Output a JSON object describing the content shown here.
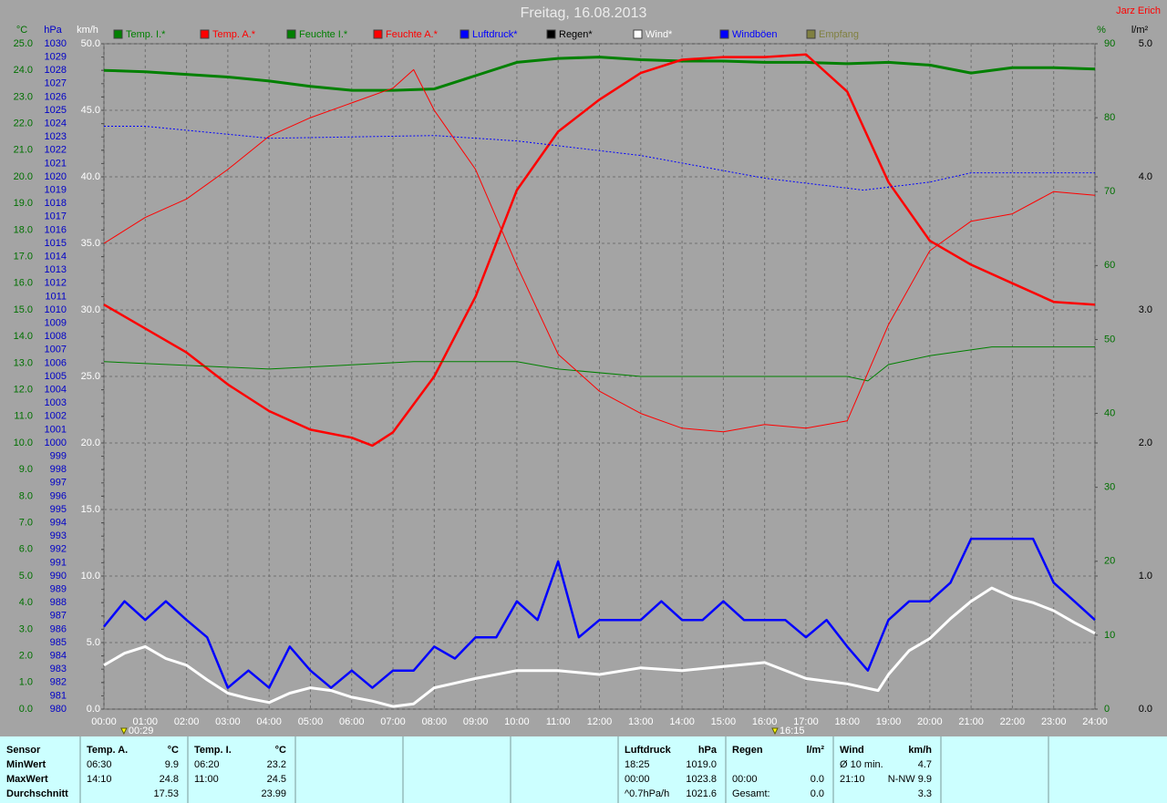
{
  "chart_data": {
    "type": "line",
    "title": "Freitag, 16.08.2013",
    "author": "Jarz Erich",
    "grid": true,
    "legend": "top",
    "xlim": [
      0,
      24
    ],
    "xticks": [
      {
        "value": 0,
        "label": "00:00"
      },
      {
        "value": 1,
        "label": "01:00"
      },
      {
        "value": 2,
        "label": "02:00"
      },
      {
        "value": 3,
        "label": "03:00"
      },
      {
        "value": 4,
        "label": "04:00"
      },
      {
        "value": 5,
        "label": "05:00"
      },
      {
        "value": 6,
        "label": "06:00"
      },
      {
        "value": 7,
        "label": "07:00"
      },
      {
        "value": 8,
        "label": "08:00"
      },
      {
        "value": 9,
        "label": "09:00"
      },
      {
        "value": 10,
        "label": "10:00"
      },
      {
        "value": 11,
        "label": "11:00"
      },
      {
        "value": 12,
        "label": "12:00"
      },
      {
        "value": 13,
        "label": "13:00"
      },
      {
        "value": 14,
        "label": "14:00"
      },
      {
        "value": 15,
        "label": "15:00"
      },
      {
        "value": 16,
        "label": "16:00"
      },
      {
        "value": 17,
        "label": "17:00"
      },
      {
        "value": 18,
        "label": "18:00"
      },
      {
        "value": 19,
        "label": "19:00"
      },
      {
        "value": 20,
        "label": "20:00"
      },
      {
        "value": 21,
        "label": "21:00"
      },
      {
        "value": 22,
        "label": "22:00"
      },
      {
        "value": 23,
        "label": "23:00"
      },
      {
        "value": 24,
        "label": "24:00"
      }
    ],
    "axes": [
      {
        "label": "°C",
        "color": "#007000",
        "lim": [
          0,
          25
        ],
        "ticks": [
          {
            "value": 0,
            "label": "0.0"
          },
          {
            "value": 1,
            "label": "1.0"
          },
          {
            "value": 2,
            "label": "2.0"
          },
          {
            "value": 3,
            "label": "3.0"
          },
          {
            "value": 4,
            "label": "4.0"
          },
          {
            "value": 5,
            "label": "5.0"
          },
          {
            "value": 6,
            "label": "6.0"
          },
          {
            "value": 7,
            "label": "7.0"
          },
          {
            "value": 8,
            "label": "8.0"
          },
          {
            "value": 9,
            "label": "9.0"
          },
          {
            "value": 10,
            "label": "10.0"
          },
          {
            "value": 11,
            "label": "11.0"
          },
          {
            "value": 12,
            "label": "12.0"
          },
          {
            "value": 13,
            "label": "13.0"
          },
          {
            "value": 14,
            "label": "14.0"
          },
          {
            "value": 15,
            "label": "15.0"
          },
          {
            "value": 16,
            "label": "16.0"
          },
          {
            "value": 17,
            "label": "17.0"
          },
          {
            "value": 18,
            "label": "18.0"
          },
          {
            "value": 19,
            "label": "19.0"
          },
          {
            "value": 20,
            "label": "20.0"
          },
          {
            "value": 21,
            "label": "21.0"
          },
          {
            "value": 22,
            "label": "22.0"
          },
          {
            "value": 23,
            "label": "23.0"
          },
          {
            "value": 24,
            "label": "24.0"
          },
          {
            "value": 25,
            "label": "25.0"
          }
        ]
      },
      {
        "label": "hPa",
        "color": "#0000c8",
        "lim": [
          980,
          1030
        ],
        "ticks": [
          980,
          981,
          982,
          983,
          984,
          985,
          986,
          987,
          988,
          989,
          990,
          991,
          992,
          993,
          994,
          995,
          996,
          997,
          998,
          999,
          1000,
          1001,
          1002,
          1003,
          1004,
          1005,
          1006,
          1007,
          1008,
          1009,
          1010,
          1011,
          1012,
          1013,
          1014,
          1015,
          1016,
          1017,
          1018,
          1019,
          1020,
          1021,
          1022,
          1023,
          1024,
          1025,
          1026,
          1027,
          1028,
          1029,
          1030
        ]
      },
      {
        "label": "km/h",
        "color": "#ffffff",
        "lim": [
          0,
          50
        ],
        "ticks": [
          {
            "value": 0,
            "label": "0.0"
          },
          {
            "value": 5,
            "label": "5.0"
          },
          {
            "value": 10,
            "label": "10.0"
          },
          {
            "value": 15,
            "label": "15.0"
          },
          {
            "value": 20,
            "label": "20.0"
          },
          {
            "value": 25,
            "label": "25.0"
          },
          {
            "value": 30,
            "label": "30.0"
          },
          {
            "value": 35,
            "label": "35.0"
          },
          {
            "value": 40,
            "label": "40.0"
          },
          {
            "value": 45,
            "label": "45.0"
          },
          {
            "value": 50,
            "label": "50.0"
          }
        ]
      },
      {
        "label": "%",
        "color": "#007000",
        "lim": [
          0,
          90
        ],
        "ticks": [
          0,
          10,
          20,
          30,
          40,
          50,
          60,
          70,
          80,
          90
        ]
      },
      {
        "label": "l/m²",
        "color": "#000000",
        "lim": [
          0,
          5
        ],
        "ticks": [
          {
            "value": 0,
            "label": "0.0"
          },
          {
            "value": 1,
            "label": "1.0"
          },
          {
            "value": 2,
            "label": "2.0"
          },
          {
            "value": 3,
            "label": "3.0"
          },
          {
            "value": 4,
            "label": "4.0"
          },
          {
            "value": 5,
            "label": "5.0"
          }
        ]
      }
    ],
    "series": [
      {
        "name": "Temp. I.*",
        "color": "#008000",
        "axis": 0,
        "x": [
          0,
          1,
          2,
          3,
          4,
          5,
          6,
          7,
          8,
          9,
          10,
          11,
          12,
          13,
          14,
          15,
          16,
          17,
          18,
          19,
          20,
          21,
          22,
          23,
          24
        ],
        "values": [
          24.0,
          23.95,
          23.85,
          23.75,
          23.6,
          23.4,
          23.25,
          23.25,
          23.3,
          23.8,
          24.3,
          24.45,
          24.5,
          24.4,
          24.35,
          24.35,
          24.3,
          24.3,
          24.25,
          24.3,
          24.2,
          23.9,
          24.1,
          24.1,
          24.05
        ]
      },
      {
        "name": "Temp. A.*",
        "color": "#ff0000",
        "axis": 0,
        "x": [
          0,
          1,
          2,
          3,
          4,
          5,
          6,
          6.5,
          7,
          8,
          9,
          10,
          11,
          12,
          13,
          14,
          15,
          16,
          17,
          18,
          19,
          20,
          21,
          22,
          23,
          24
        ],
        "values": [
          15.2,
          14.3,
          13.4,
          12.2,
          11.2,
          10.5,
          10.2,
          9.9,
          10.4,
          12.5,
          15.5,
          19.5,
          21.7,
          22.9,
          23.9,
          24.4,
          24.5,
          24.5,
          24.6,
          23.2,
          19.8,
          17.6,
          16.7,
          16.0,
          15.3,
          15.2
        ]
      },
      {
        "name": "Feuchte I.*",
        "color": "#008000",
        "axis": 3,
        "x": [
          0,
          4,
          7.5,
          10,
          11,
          13,
          18,
          18.5,
          19,
          20,
          21.5,
          24
        ],
        "values": [
          47,
          46,
          47,
          47,
          46,
          45,
          45,
          44.4,
          46.6,
          47.8,
          49,
          49
        ]
      },
      {
        "name": "Feuchte A.*",
        "color": "#ff0000",
        "axis": 3,
        "x": [
          0,
          1,
          2,
          3,
          4,
          5,
          6,
          7,
          7.5,
          8,
          9,
          10,
          11,
          12,
          13,
          14,
          15,
          16,
          17,
          18,
          19,
          20,
          21,
          22,
          23,
          24
        ],
        "values": [
          63,
          66.5,
          69,
          73,
          77.5,
          80,
          82,
          84,
          86.5,
          81,
          73,
          60,
          48,
          43,
          40,
          38,
          37.5,
          38.5,
          38,
          39,
          52,
          62,
          66,
          67,
          70,
          69.5
        ]
      },
      {
        "name": "Luftdruck*",
        "color": "#0000ff",
        "axis": 1,
        "x": [
          0,
          1,
          4,
          8,
          10,
          13,
          16,
          18.4,
          20,
          21,
          24
        ],
        "values": [
          1023.8,
          1023.8,
          1022.9,
          1023.1,
          1022.7,
          1021.6,
          1019.9,
          1019.0,
          1019.6,
          1020.3,
          1020.3
        ]
      },
      {
        "name": "Regen*",
        "color": "#000000",
        "axis": 4
      },
      {
        "name": "Wind*",
        "color": "#ffffff",
        "axis": 2,
        "x": [
          0,
          0.5,
          1,
          1.5,
          2,
          2.5,
          3,
          3.5,
          4,
          4.5,
          5,
          5.5,
          6,
          6.5,
          7,
          7.5,
          8,
          9,
          10,
          11,
          12,
          13,
          14,
          15,
          16,
          17,
          18,
          18.75,
          19,
          19.5,
          20,
          20.5,
          21,
          21.5,
          22,
          22.5,
          23,
          23.5,
          24
        ],
        "values": [
          3.3,
          4.2,
          4.7,
          3.8,
          3.3,
          2.2,
          1.2,
          0.8,
          0.5,
          1.2,
          1.6,
          1.4,
          0.9,
          0.6,
          0.2,
          0.4,
          1.6,
          2.3,
          2.9,
          2.9,
          2.6,
          3.1,
          2.9,
          3.2,
          3.5,
          2.3,
          1.9,
          1.4,
          2.6,
          4.4,
          5.3,
          6.8,
          8.1,
          9.1,
          8.4,
          8.0,
          7.4,
          6.5,
          5.7
        ]
      },
      {
        "name": "Windböen",
        "color": "#0000ff",
        "axis": 2,
        "x": [
          0,
          0.5,
          1,
          1.5,
          2,
          2.5,
          3,
          3.5,
          4,
          4.5,
          5,
          5.5,
          6,
          6.5,
          7,
          7.5,
          8,
          8.5,
          9,
          9.5,
          10,
          10.5,
          11,
          11.5,
          12,
          12.5,
          13,
          13.5,
          14,
          14.5,
          15,
          15.5,
          16,
          16.5,
          17,
          17.5,
          18,
          18.5,
          19,
          19.5,
          20,
          20.5,
          21,
          21.5,
          22,
          22.5,
          23,
          23.5,
          24
        ],
        "values": [
          6.2,
          8.1,
          6.7,
          8.1,
          6.7,
          5.4,
          1.6,
          2.9,
          1.6,
          4.7,
          2.9,
          1.6,
          2.9,
          1.6,
          2.9,
          2.9,
          4.7,
          3.8,
          5.4,
          5.4,
          8.1,
          6.7,
          11.1,
          5.4,
          6.7,
          6.7,
          6.7,
          8.1,
          6.7,
          6.7,
          8.1,
          6.7,
          6.7,
          6.7,
          5.4,
          6.7,
          4.7,
          2.9,
          6.7,
          8.1,
          8.1,
          9.5,
          12.8,
          12.8,
          12.8,
          12.8,
          9.5,
          8.1,
          6.7
        ]
      },
      {
        "name": "Empfang",
        "color": "#808040",
        "axis": 4
      }
    ],
    "annotations": [
      {
        "x": 0.483,
        "label": "00:29"
      },
      {
        "x": 16.25,
        "label": "16:15"
      }
    ]
  },
  "footer": {
    "blocks": [
      {
        "header": [
          "Sensor"
        ],
        "min": [
          "MinWert"
        ],
        "max": [
          "MaxWert"
        ],
        "avg": [
          "Durchschnitt"
        ]
      },
      {
        "header": [
          "Temp. A.",
          "°C"
        ],
        "min": [
          "06:30",
          "9.9"
        ],
        "max": [
          "14:10",
          "24.8"
        ],
        "avg": [
          "17.53"
        ]
      },
      {
        "header": [
          "Temp. I.",
          "°C"
        ],
        "min": [
          "06:20",
          "23.2"
        ],
        "max": [
          "11:00",
          "24.5"
        ],
        "avg": [
          "23.99"
        ]
      },
      {
        "header": [
          "Luftdruck",
          "hPa"
        ],
        "min": [
          "18:25",
          "1019.0"
        ],
        "max": [
          "00:00",
          "1023.8"
        ],
        "avg": [
          "^0.7hPa/h",
          "1021.6"
        ]
      },
      {
        "header": [
          "Regen",
          "l/m²"
        ],
        "max": [
          "00:00",
          "0.0"
        ],
        "avg": [
          "Gesamt:",
          "0.0"
        ]
      },
      {
        "header": [
          "Wind",
          "km/h"
        ],
        "min": [
          "Ø 10 min.",
          "4.7"
        ],
        "max": [
          "21:10",
          "N-NW 9.9"
        ],
        "avg": [
          "3.3"
        ]
      }
    ]
  }
}
